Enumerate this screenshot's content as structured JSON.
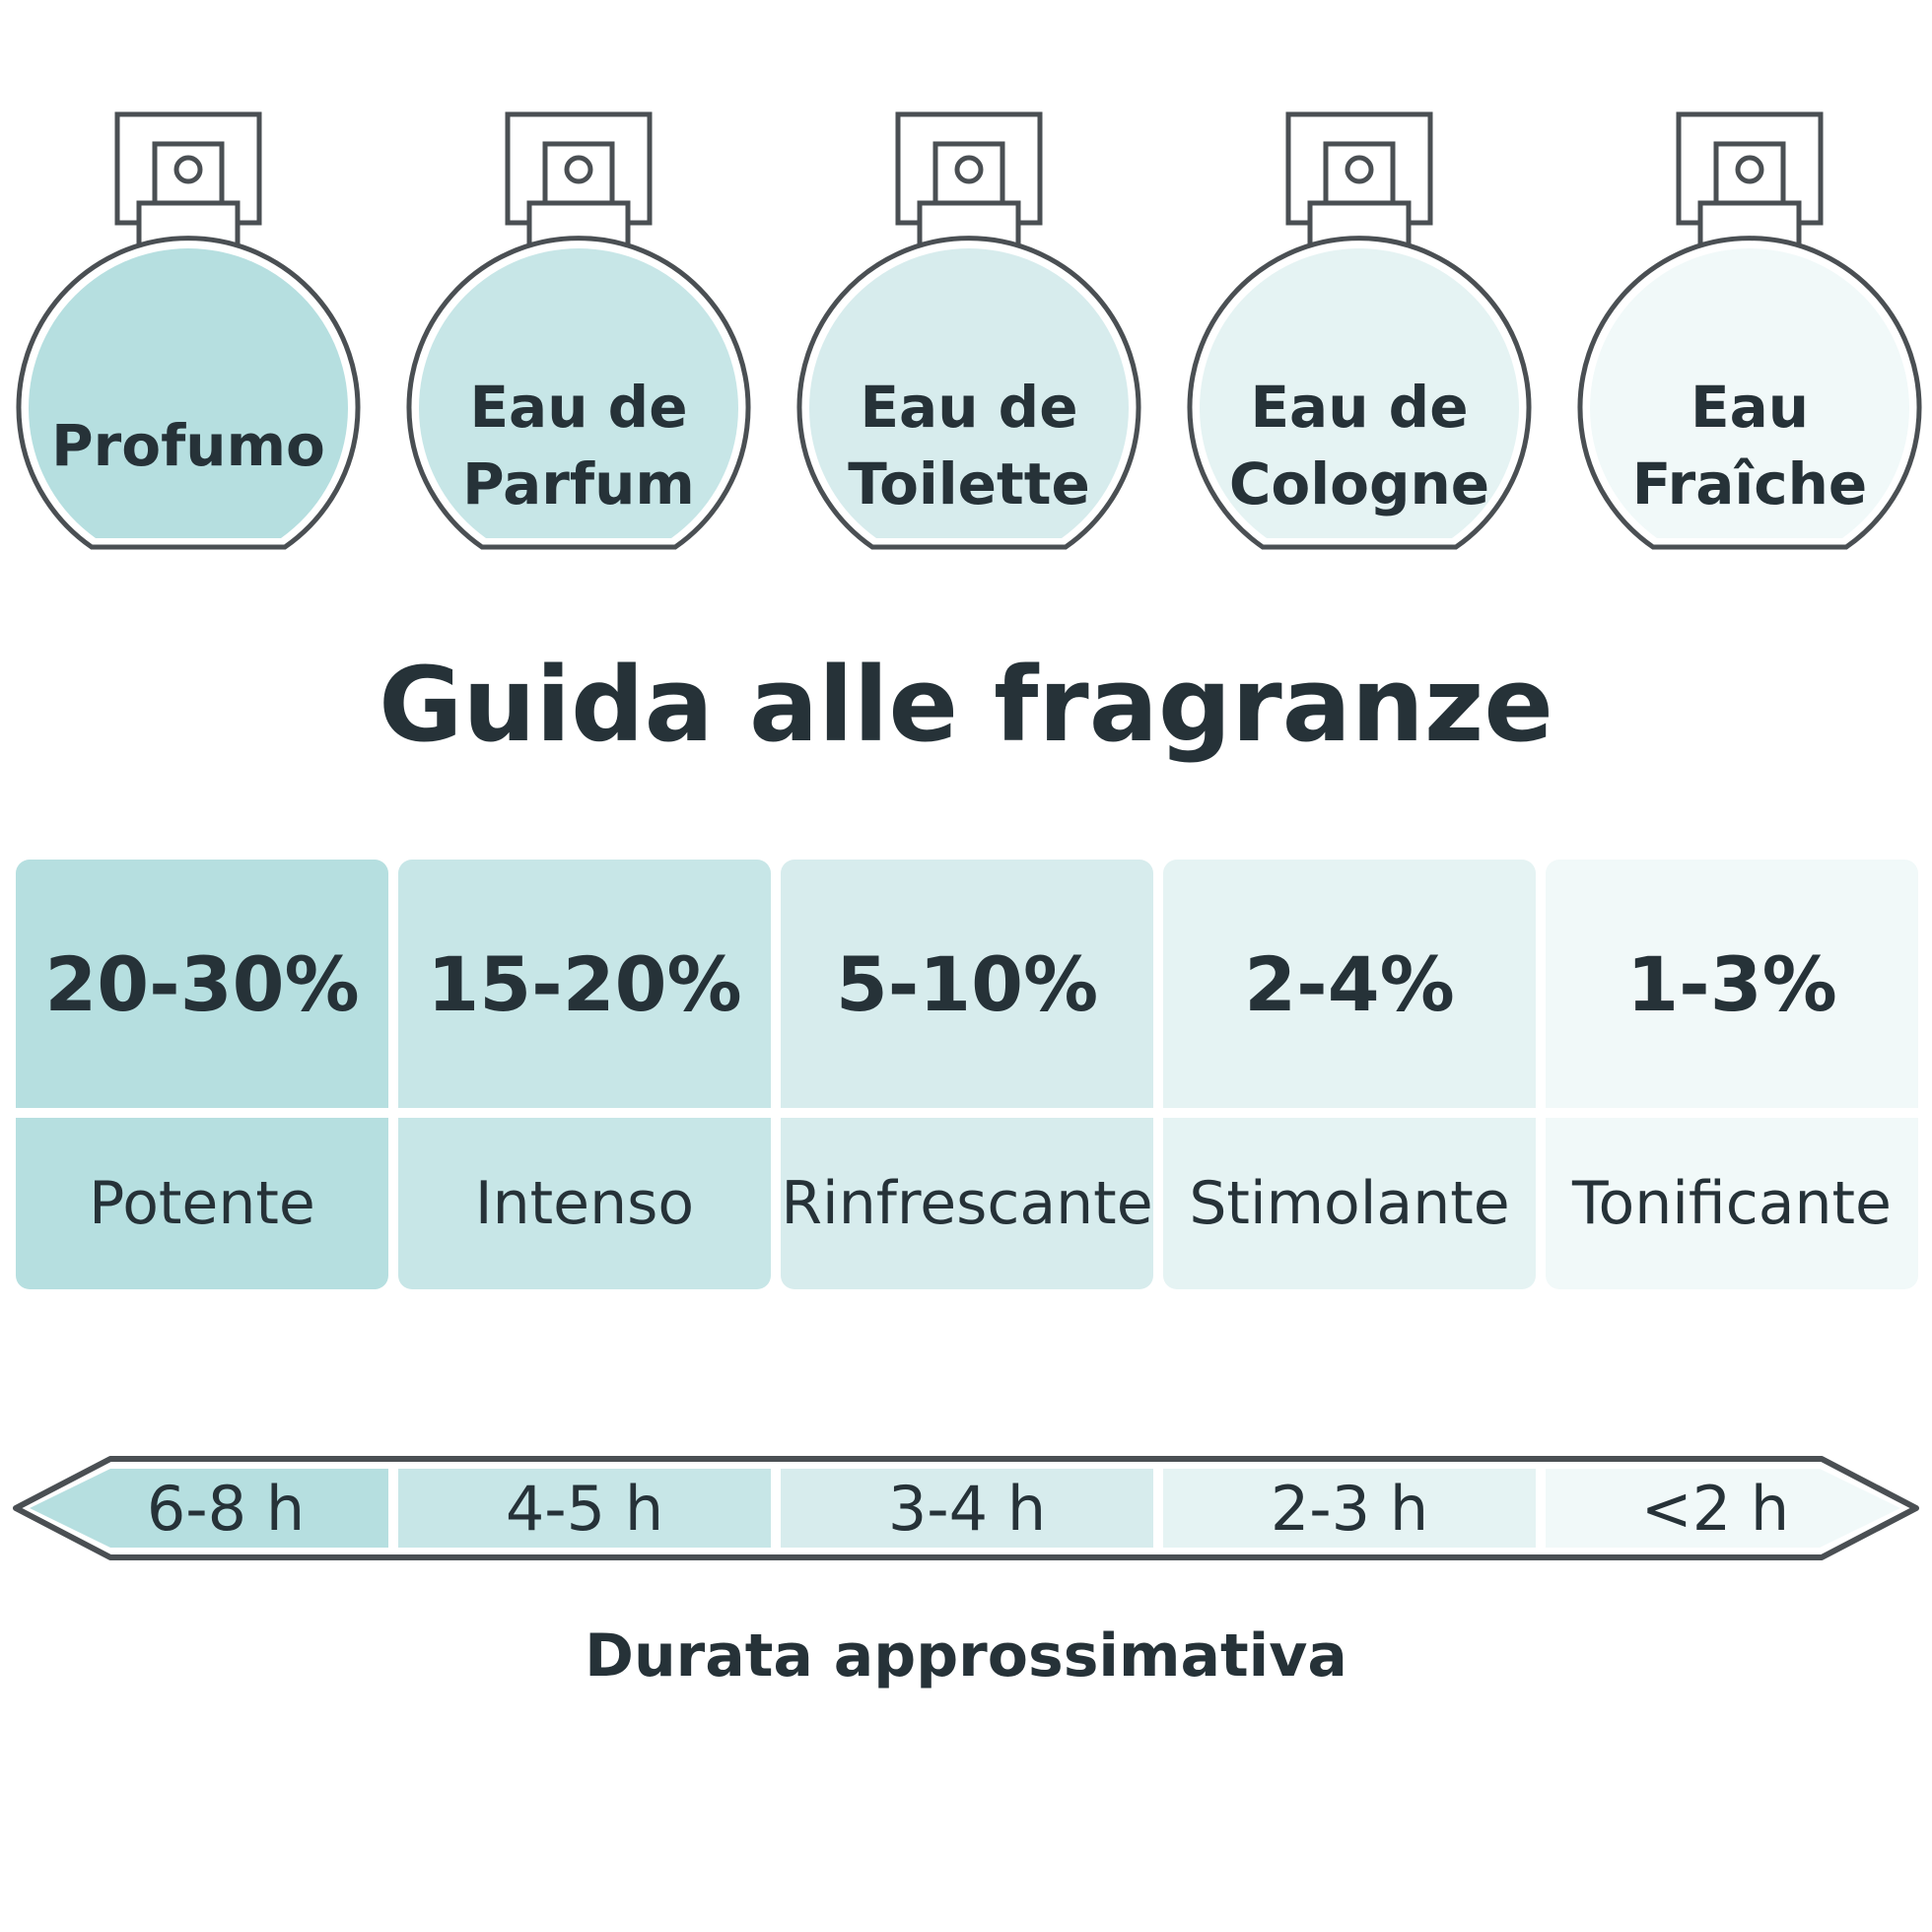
{
  "title": "Guida alle fragranze",
  "types": [
    {
      "name": "Profumo",
      "concentration": "20-30%",
      "description": "Potente",
      "duration": "6-8 h",
      "color": "#b6dfe0"
    },
    {
      "name": "Eau de\nParfum",
      "concentration": "15-20%",
      "description": "Intenso",
      "duration": "4-5 h",
      "color": "#c7e6e7"
    },
    {
      "name": "Eau de\nToilette",
      "concentration": "5-10%",
      "description": "Rinfrescante",
      "duration": "3-4 h",
      "color": "#d7eced"
    },
    {
      "name": "Eau de\nCologne",
      "concentration": "2-4%",
      "description": "Stimolante",
      "duration": "2-3 h",
      "color": "#e5f3f3"
    },
    {
      "name": "Eau\nFraîche",
      "concentration": "1-3%",
      "description": "Tonificante",
      "duration": "<2 h",
      "color": "#f1f9f9"
    }
  ],
  "duration_label": "Durata approssimativa",
  "outline_color": "#4a4f53",
  "text_color": "#263238"
}
